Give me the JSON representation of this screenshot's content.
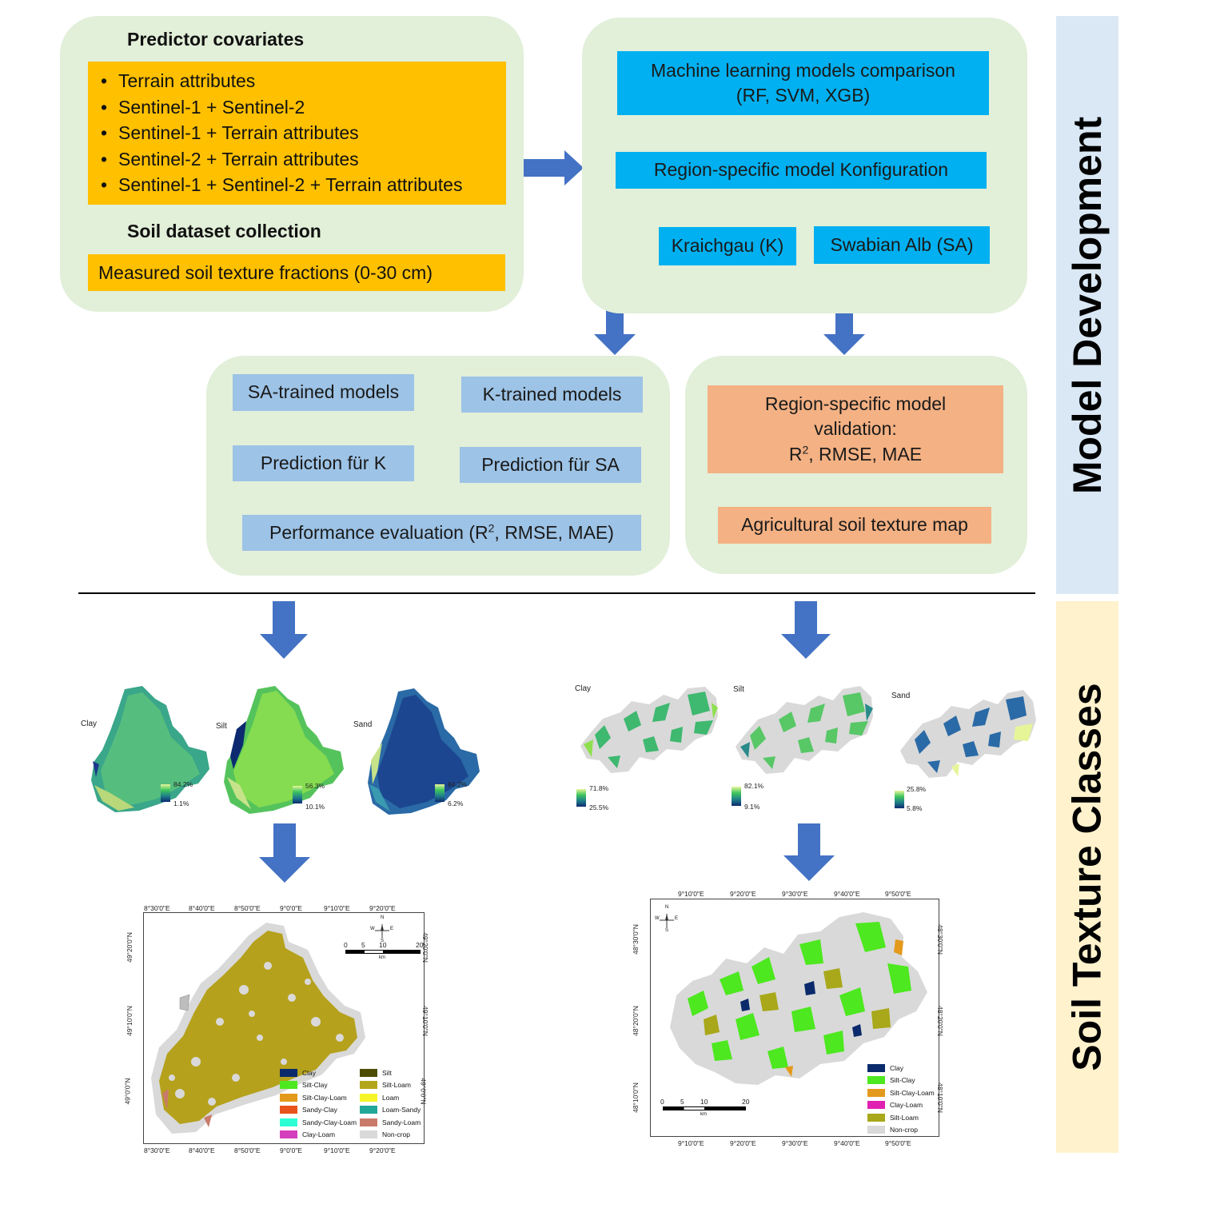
{
  "side_labels": {
    "model_development": "Model Development",
    "soil_texture_classes": "Soil Texture Classes"
  },
  "inputs": {
    "predictor_title": "Predictor covariates",
    "predictors": [
      "Terrain attributes",
      "Sentinel-1 + Sentinel-2",
      "Sentinel-1 + Terrain attributes",
      "Sentinel-2 + Terrain attributes",
      "Sentinel-1 + Sentinel-2 + Terrain attributes"
    ],
    "soil_title": "Soil dataset collection",
    "soil_item": "Measured soil texture fractions (0-30 cm)"
  },
  "modeling": {
    "comparison_line1": "Machine learning models comparison",
    "comparison_line2": "(RF, SVM, XGB)",
    "configuration": "Region-specific model Konfiguration",
    "region_k": "Kraichgau (K)",
    "region_sa": "Swabian Alb (SA)"
  },
  "transfer": {
    "sa_trained": "SA-trained models",
    "k_trained": "K-trained models",
    "pred_k": "Prediction für K",
    "pred_sa": "Prediction für SA",
    "perf_pre": "Performance evaluation (R",
    "perf_sup": "2",
    "perf_post": ", RMSE, MAE)"
  },
  "validation": {
    "line1": "Region-specific model",
    "line2": "validation:",
    "line3_pre": "R",
    "line3_sup": "2",
    "line3_post": ", RMSE, MAE",
    "map": "Agricultural soil texture map"
  },
  "fraction_maps_left": [
    {
      "label": "Clay",
      "max": "84.2%",
      "min": "1.1%"
    },
    {
      "label": "Silt",
      "max": "56.3%",
      "min": "10.1%"
    },
    {
      "label": "Sand",
      "max": "84.2%",
      "min": "6.2%"
    }
  ],
  "fraction_maps_right": [
    {
      "label": "Clay",
      "max": "71.8%",
      "min": "25.5%"
    },
    {
      "label": "Silt",
      "max": "82.1%",
      "min": "9.1%"
    },
    {
      "label": "Sand",
      "max": "25.8%",
      "min": "5.8%"
    }
  ],
  "class_map_left": {
    "top_ticks": [
      "8°30'0\"E",
      "8°40'0\"E",
      "8°50'0\"E",
      "9°0'0\"E",
      "9°10'0\"E",
      "9°20'0\"E"
    ],
    "bottom_ticks": [
      "8°30'0\"E",
      "8°40'0\"E",
      "8°50'0\"E",
      "9°0'0\"E",
      "9°10'0\"E",
      "9°20'0\"E"
    ],
    "lat_ticks": [
      "49°20'0\"N",
      "49°10'0\"N",
      "49°0'0\"N"
    ],
    "scale": [
      "0",
      "5",
      "10",
      "20"
    ],
    "scale_unit": "km",
    "compass": [
      "N",
      "S",
      "E",
      "W"
    ],
    "legend": [
      {
        "label": "Clay",
        "color": "#0a2a6b"
      },
      {
        "label": "Silt",
        "color": "#4d4d00"
      },
      {
        "label": "Silt-Clay",
        "color": "#4de81f"
      },
      {
        "label": "Silt-Loam",
        "color": "#b3a61c"
      },
      {
        "label": "Silt-Clay-Loam",
        "color": "#e39a1c"
      },
      {
        "label": "Loam",
        "color": "#f5f52a"
      },
      {
        "label": "Sandy-Clay",
        "color": "#e8541c"
      },
      {
        "label": "Loam-Sandy",
        "color": "#22a89a"
      },
      {
        "label": "Sandy-Clay-Loam",
        "color": "#2dffd5"
      },
      {
        "label": "Sandy-Loam",
        "color": "#c97a6a"
      },
      {
        "label": "Clay-Loam",
        "color": "#d43fbd"
      },
      {
        "label": "Non-crop",
        "color": "#d9d9d9"
      }
    ]
  },
  "class_map_right": {
    "top_ticks": [
      "9°10'0\"E",
      "9°20'0\"E",
      "9°30'0\"E",
      "9°40'0\"E",
      "9°50'0\"E"
    ],
    "bottom_ticks": [
      "9°10'0\"E",
      "9°20'0\"E",
      "9°30'0\"E",
      "9°40'0\"E",
      "9°50'0\"E"
    ],
    "lat_ticks": [
      "48°30'0\"N",
      "48°20'0\"N",
      "48°10'0\"N"
    ],
    "scale": [
      "0",
      "5",
      "10",
      "20"
    ],
    "scale_unit": "km",
    "compass": [
      "N",
      "S",
      "E",
      "W"
    ],
    "legend": [
      {
        "label": "Clay",
        "color": "#0a2a6b"
      },
      {
        "label": "Silt-Clay",
        "color": "#4de81f"
      },
      {
        "label": "Silt-Clay-Loam",
        "color": "#e39a1c"
      },
      {
        "label": "Clay-Loam",
        "color": "#e020b0"
      },
      {
        "label": "Silt-Loam",
        "color": "#a8a81a"
      },
      {
        "label": "Non-crop",
        "color": "#d9d9d9"
      }
    ]
  }
}
